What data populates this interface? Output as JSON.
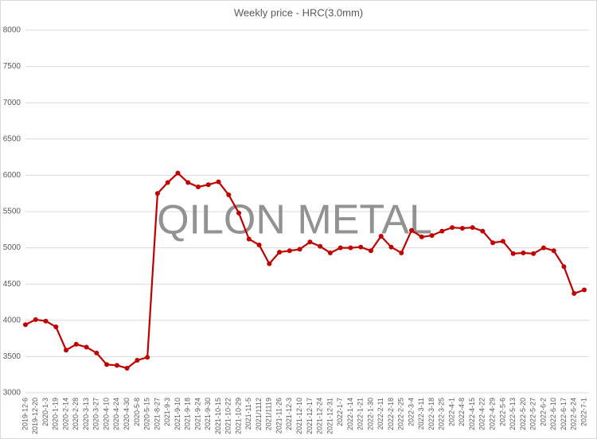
{
  "chart_data": {
    "type": "line",
    "title": "Weekly price - HRC(3.0mm)",
    "watermark": "QILON METAL",
    "categories": [
      "2019-12-6",
      "2019-12-20",
      "2020-1-3",
      "2020-1-19",
      "2020-2-14",
      "2020-2-28",
      "2020-3-13",
      "2020-3-27",
      "2020-4-10",
      "2020-4-24",
      "2020-4-30",
      "2020-5-8",
      "2020-5-15",
      "2021-8-27",
      "2021-9-3",
      "2021-9-10",
      "2021-9-18",
      "2021-9-24",
      "2021-9-30",
      "2021-10-15",
      "2021-10-22",
      "2021-10-29",
      "2021-11-5",
      "2021/1112",
      "2021/1119",
      "2021-11-26",
      "2021-12-3",
      "2021-12-10",
      "2021-12-17",
      "2021-12-24",
      "2021-12-31",
      "2022-1-7",
      "2022-1-14",
      "2022-1-21",
      "2022-1-30",
      "2022-2-11",
      "2022-2-18",
      "2022-2-25",
      "2022-3-4",
      "2022-3-11",
      "2022-3-18",
      "2022-3-25",
      "2022-4-1",
      "2022-4-8",
      "2022-4-15",
      "2022-4-22",
      "2022-4-29",
      "2022-5-6",
      "2022-5-13",
      "2022-5-20",
      "2022-5-27",
      "2022-6-2",
      "2022-6-10",
      "2022-6-17",
      "2022-6-24",
      "2022-7-1"
    ],
    "values": [
      3940,
      4010,
      3990,
      3910,
      3590,
      3670,
      3630,
      3550,
      3390,
      3380,
      3340,
      3450,
      3490,
      5750,
      5900,
      6030,
      5900,
      5840,
      5870,
      5910,
      5730,
      5480,
      5120,
      5040,
      4780,
      4940,
      4960,
      4980,
      5080,
      5020,
      4930,
      5000,
      5000,
      5010,
      4960,
      5160,
      5010,
      4930,
      5240,
      5150,
      5170,
      5230,
      5280,
      5270,
      5280,
      5230,
      5070,
      5090,
      4920,
      4930,
      4920,
      5000,
      4960,
      4740,
      4370,
      4420
    ],
    "color": "#c00000",
    "ylim": [
      3000,
      8000
    ],
    "yticks": [
      3000,
      3500,
      4000,
      4500,
      5000,
      5500,
      6000,
      6500,
      7000,
      7500,
      8000
    ],
    "grid": true
  }
}
